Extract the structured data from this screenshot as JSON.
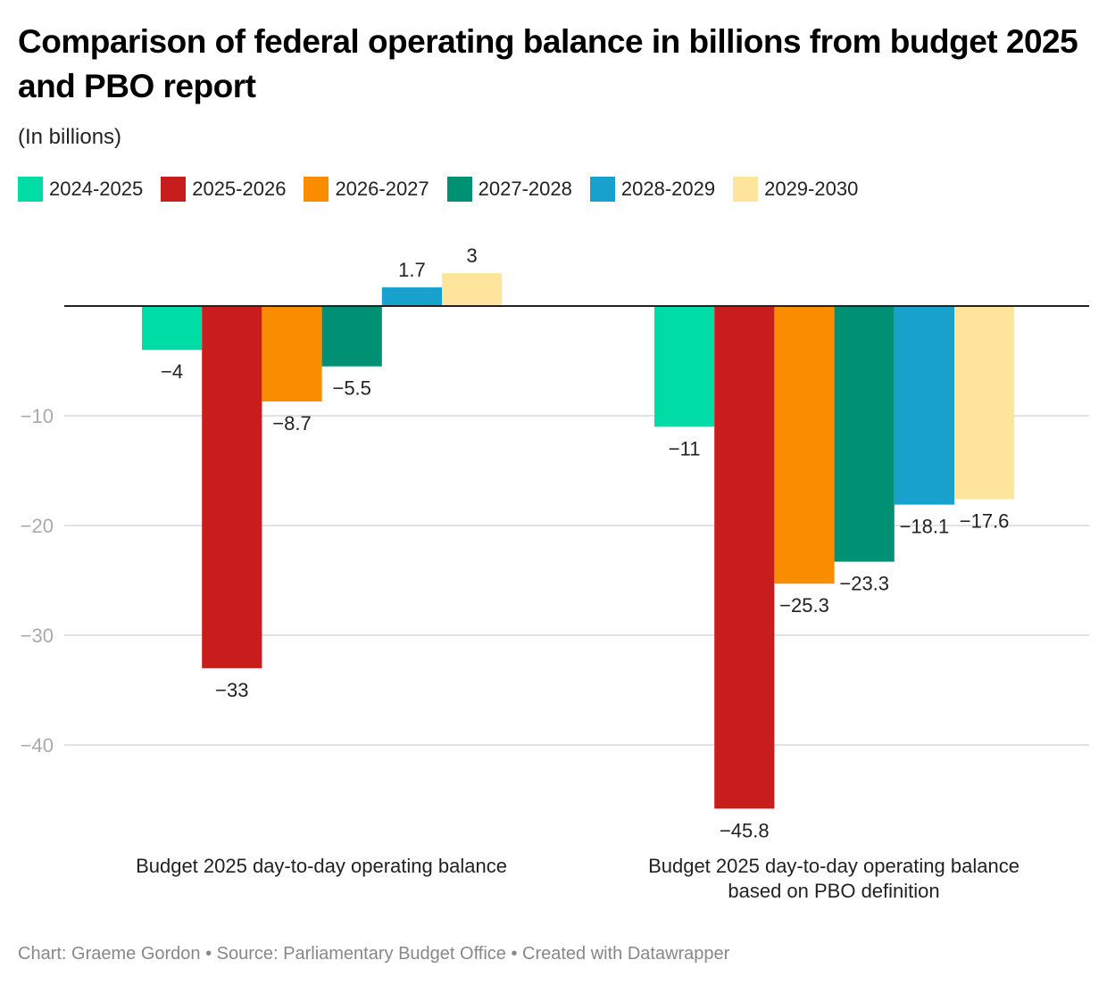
{
  "title": "Comparison of federal operating balance in billions from budget 2025 and PBO report",
  "subtitle": "(In billions)",
  "footer": "Chart: Graeme Gordon • Source: Parliamentary Budget Office • Created with Datawrapper",
  "chart_data": {
    "type": "bar",
    "title": "Comparison of federal operating balance in billions from budget 2025 and PBO report",
    "subtitle": "(In billions)",
    "xlabel": "",
    "ylabel": "",
    "ylim": [
      -48,
      5
    ],
    "yticks": [
      -10,
      -20,
      -30,
      -40
    ],
    "ytick_labels": [
      "−10",
      "−20",
      "−30",
      "−40"
    ],
    "grid": true,
    "legend": "top-left",
    "categories": [
      [
        "Budget 2025 day-to-day operating balance"
      ],
      [
        "Budget 2025 day-to-day operating balance",
        "based on PBO definition"
      ]
    ],
    "series": [
      {
        "name": "2024-2025",
        "color": "#00dca6",
        "values": [
          -4,
          -11
        ],
        "labels": [
          "−4",
          "−11"
        ]
      },
      {
        "name": "2025-2026",
        "color": "#c71e1d",
        "values": [
          -33,
          -45.8
        ],
        "labels": [
          "−33",
          "−45.8"
        ]
      },
      {
        "name": "2026-2027",
        "color": "#fa8c00",
        "values": [
          -8.7,
          -25.3
        ],
        "labels": [
          "−8.7",
          "−25.3"
        ]
      },
      {
        "name": "2027-2028",
        "color": "#009175",
        "values": [
          -5.5,
          -23.3
        ],
        "labels": [
          "−5.5",
          "−23.3"
        ]
      },
      {
        "name": "2028-2029",
        "color": "#18a1cd",
        "values": [
          1.7,
          -18.1
        ],
        "labels": [
          "1.7",
          "−18.1"
        ]
      },
      {
        "name": "2029-2030",
        "color": "#ffe59c",
        "values": [
          3,
          -17.6
        ],
        "labels": [
          "3",
          "−17.6"
        ]
      }
    ]
  }
}
